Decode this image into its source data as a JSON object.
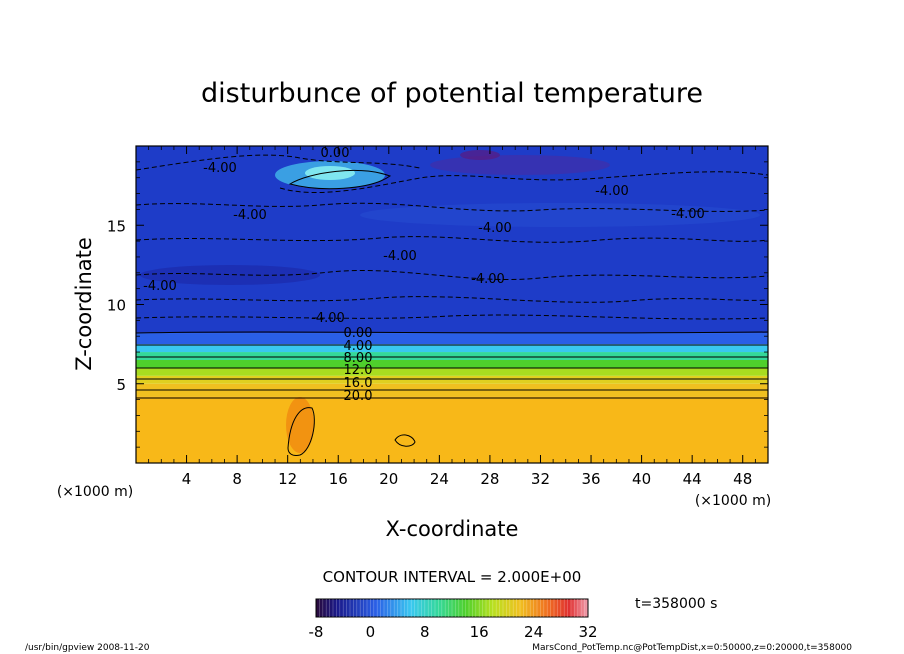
{
  "chart_data": {
    "type": "heatmap",
    "title": "disturbunce of potential temperature",
    "xlabel": "X-coordinate",
    "ylabel": "Z-coordinate",
    "x_unit_left": "(×1000 m)",
    "x_unit_right": "(×1000 m)",
    "xlim": [
      0,
      50
    ],
    "ylim": [
      0,
      20
    ],
    "xticks": [
      4,
      8,
      12,
      16,
      20,
      24,
      28,
      32,
      36,
      40,
      44,
      48
    ],
    "yticks": [
      5,
      10,
      15
    ],
    "contour_interval_text": "CONTOUR INTERVAL = 2.000E+00",
    "time_text": "t=358000 s",
    "contour_labels": [
      "0.00",
      "-4.00",
      "-4.00",
      "-4.00",
      "-4.00",
      "-4.00",
      "-4.00",
      "-4.00",
      "-4.00",
      "-4.00",
      "0.00",
      "4.00",
      "8.00",
      "12.0",
      "16.0",
      "20.0"
    ],
    "colorbar": {
      "range": [
        -8,
        32
      ],
      "ticks": [
        "-8",
        "0",
        "8",
        "16",
        "24",
        "32"
      ]
    },
    "layers": [
      {
        "z_top": 4.2,
        "value": 25
      },
      {
        "z_top": 5.0,
        "value": 21
      },
      {
        "z_top": 5.5,
        "value": 17
      },
      {
        "z_top": 6.0,
        "value": 13
      },
      {
        "z_top": 6.5,
        "value": 9
      },
      {
        "z_top": 7.0,
        "value": 5
      },
      {
        "z_top": 7.5,
        "value": 2
      },
      {
        "z_top": 8.2,
        "value": -1
      },
      {
        "z_top": 20.0,
        "value": -4
      }
    ]
  },
  "footer": {
    "left": "/usr/bin/gpview  2008-11-20",
    "right": "MarsCond_PotTemp.nc@PotTempDist,x=0:50000,z=0:20000,t=358000"
  }
}
